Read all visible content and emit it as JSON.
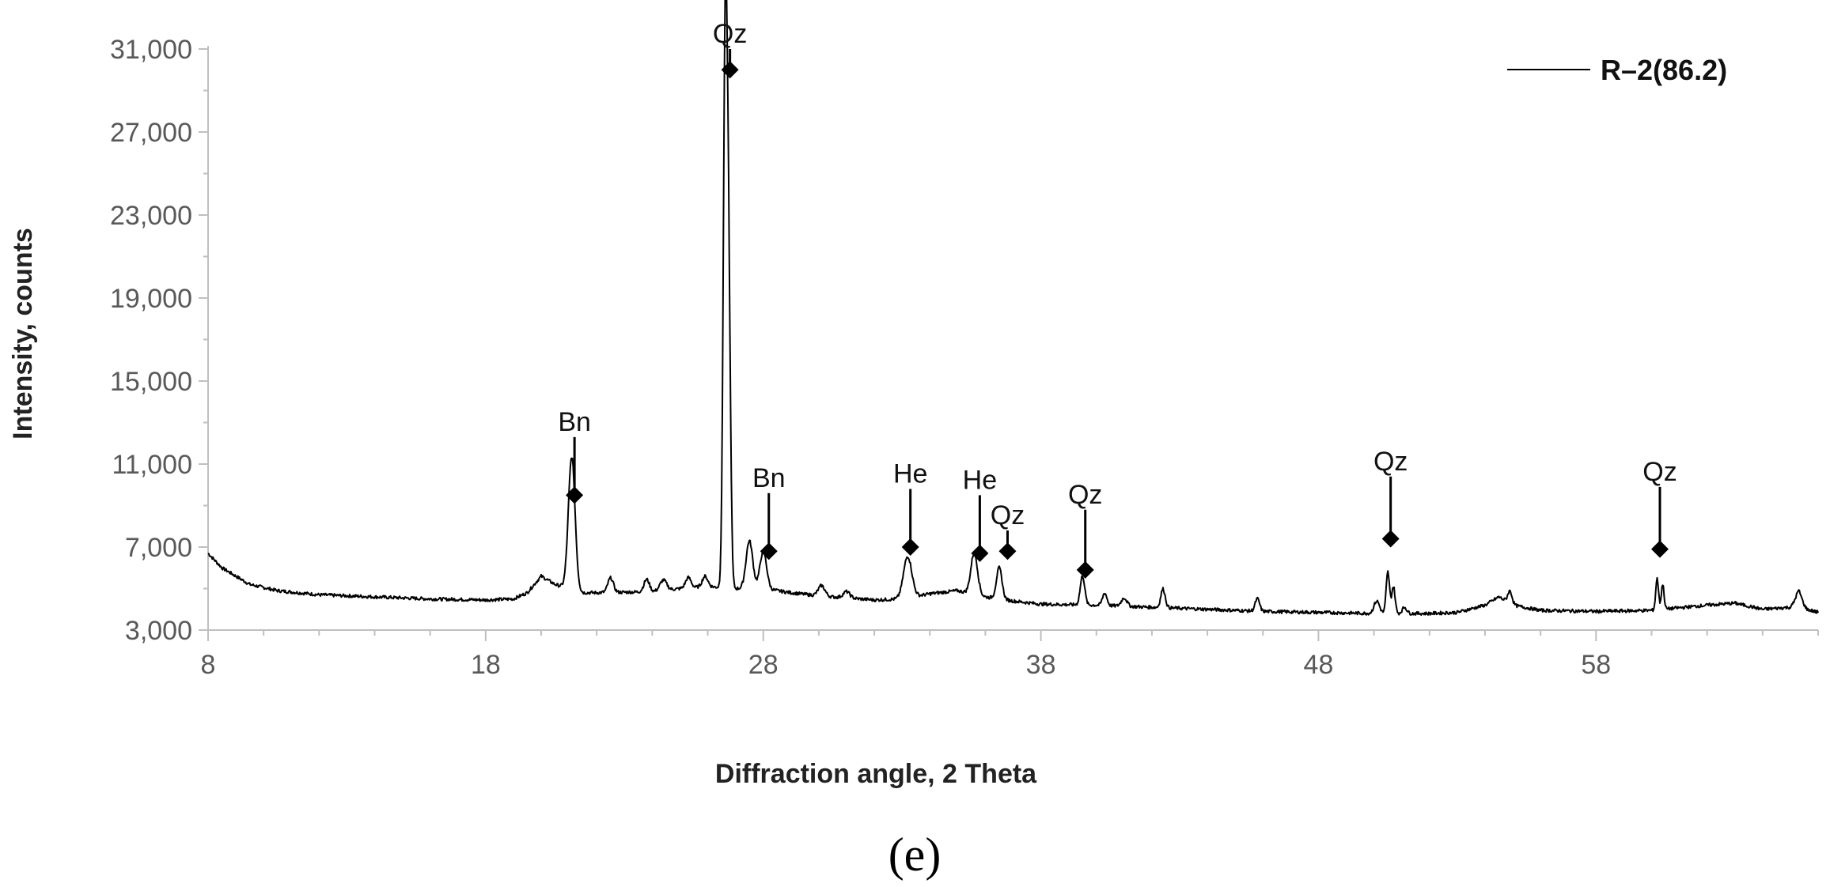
{
  "chart_data": {
    "type": "line",
    "panel_label": "(e)",
    "xlabel": "Diffraction angle, 2 Theta",
    "ylabel": "Intensity, counts",
    "xlim": [
      8,
      66
    ],
    "ylim": [
      3000,
      31000
    ],
    "x_ticks": [
      8,
      18,
      28,
      38,
      48,
      58
    ],
    "x_tick_labels": [
      "8",
      "18",
      "28",
      "38",
      "48",
      "58"
    ],
    "y_ticks": [
      3000,
      7000,
      11000,
      15000,
      19000,
      23000,
      27000,
      31000
    ],
    "y_tick_labels": [
      "3,000",
      "7,000",
      "11,000",
      "15,000",
      "19,000",
      "23,000",
      "27,000",
      "31,000"
    ],
    "grid": false,
    "legend_position": "top-right",
    "colors": {
      "series": "#000000",
      "axis": "#bfbfbf",
      "tick_text": "#595959"
    },
    "series": [
      {
        "name": "R–2(86.2)",
        "baseline": [
          [
            8.0,
            6700
          ],
          [
            8.5,
            6000
          ],
          [
            9.5,
            5200
          ],
          [
            10.5,
            4900
          ],
          [
            12,
            4700
          ],
          [
            14,
            4600
          ],
          [
            16,
            4500
          ],
          [
            18,
            4450
          ],
          [
            19,
            4500
          ],
          [
            19.5,
            4800
          ],
          [
            20.0,
            5600
          ],
          [
            20.5,
            5200
          ],
          [
            21.0,
            5000
          ],
          [
            21.5,
            4800
          ],
          [
            22.0,
            4800
          ],
          [
            24,
            4850
          ],
          [
            25,
            5000
          ],
          [
            26,
            5100
          ],
          [
            27,
            5000
          ],
          [
            28,
            5000
          ],
          [
            29,
            4800
          ],
          [
            30,
            4650
          ],
          [
            31,
            4550
          ],
          [
            32,
            4450
          ],
          [
            33,
            4500
          ],
          [
            34,
            4750
          ],
          [
            35,
            4900
          ],
          [
            36,
            4600
          ],
          [
            37,
            4400
          ],
          [
            38,
            4250
          ],
          [
            40,
            4200
          ],
          [
            42,
            4100
          ],
          [
            44,
            4000
          ],
          [
            46,
            3900
          ],
          [
            48,
            3850
          ],
          [
            50,
            3800
          ],
          [
            52,
            3800
          ],
          [
            53,
            3850
          ],
          [
            54,
            4200
          ],
          [
            54.5,
            4600
          ],
          [
            55,
            4200
          ],
          [
            56,
            3950
          ],
          [
            58,
            3900
          ],
          [
            60,
            3950
          ],
          [
            62,
            4200
          ],
          [
            63,
            4300
          ],
          [
            64,
            4000
          ],
          [
            65,
            4100
          ],
          [
            65.3,
            4500
          ],
          [
            65.6,
            4000
          ],
          [
            66,
            3850
          ]
        ],
        "peaks": [
          [
            21.1,
            6400,
            0.12
          ],
          [
            22.5,
            700,
            0.1
          ],
          [
            23.8,
            600,
            0.1
          ],
          [
            24.4,
            500,
            0.12
          ],
          [
            25.3,
            500,
            0.1
          ],
          [
            25.9,
            500,
            0.1
          ],
          [
            26.63,
            25800,
            0.07
          ],
          [
            26.75,
            14000,
            0.07
          ],
          [
            27.5,
            2300,
            0.12
          ],
          [
            28.0,
            1800,
            0.12
          ],
          [
            30.1,
            500,
            0.12
          ],
          [
            31.0,
            300,
            0.12
          ],
          [
            33.2,
            2000,
            0.15
          ],
          [
            35.6,
            2000,
            0.12
          ],
          [
            36.5,
            1500,
            0.1
          ],
          [
            39.5,
            1400,
            0.08
          ],
          [
            40.3,
            600,
            0.08
          ],
          [
            41.0,
            400,
            0.1
          ],
          [
            42.4,
            900,
            0.08
          ],
          [
            45.8,
            600,
            0.08
          ],
          [
            50.1,
            600,
            0.1
          ],
          [
            50.5,
            2000,
            0.06
          ],
          [
            50.7,
            1300,
            0.06
          ],
          [
            51.1,
            300,
            0.08
          ],
          [
            54.9,
            600,
            0.08
          ],
          [
            60.2,
            1500,
            0.05
          ],
          [
            60.4,
            1200,
            0.05
          ],
          [
            65.3,
            400,
            0.1
          ]
        ]
      }
    ],
    "annotations": [
      {
        "label": "Bn",
        "x": 21.2,
        "y": 9500,
        "line_top": 12300
      },
      {
        "label": "Qz",
        "x": 26.8,
        "y": 30000,
        "line_top": 31000
      },
      {
        "label": "Bn",
        "x": 28.2,
        "y": 6800,
        "line_top": 9600
      },
      {
        "label": "He",
        "x": 33.3,
        "y": 7000,
        "line_top": 9800
      },
      {
        "label": "He",
        "x": 35.8,
        "y": 6700,
        "line_top": 9500
      },
      {
        "label": "Qz",
        "x": 36.8,
        "y": 6800,
        "line_top": 7800
      },
      {
        "label": "Qz",
        "x": 39.6,
        "y": 5900,
        "line_top": 8800
      },
      {
        "label": "Qz",
        "x": 50.6,
        "y": 7400,
        "line_top": 10400
      },
      {
        "label": "Qz",
        "x": 60.3,
        "y": 6900,
        "line_top": 9900
      }
    ]
  }
}
